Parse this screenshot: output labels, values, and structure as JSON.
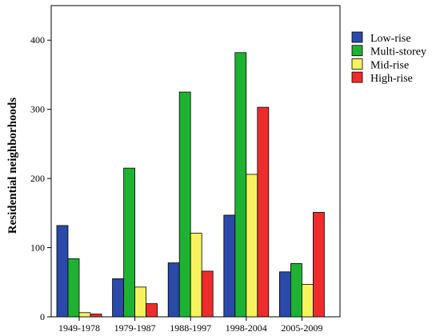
{
  "chart_data": {
    "type": "bar",
    "title": "",
    "xlabel": "",
    "ylabel": "Residential neighborhoods",
    "ylim": [
      0,
      450
    ],
    "yticks": [
      0,
      100,
      200,
      300,
      400
    ],
    "grid": false,
    "legend_position": "right",
    "categories": [
      "1949-1978",
      "1979-1987",
      "1988-1997",
      "1998-2004",
      "2005-2009"
    ],
    "series": [
      {
        "name": "Low-rise",
        "color": "#2a49a8",
        "values": [
          132,
          55,
          78,
          147,
          65
        ]
      },
      {
        "name": "Multi-storey",
        "color": "#1fb232",
        "values": [
          84,
          215,
          325,
          382,
          77
        ]
      },
      {
        "name": "Mid-rise",
        "color": "#f7f35e",
        "values": [
          6,
          43,
          121,
          206,
          47
        ]
      },
      {
        "name": "High-rise",
        "color": "#ee2c2c",
        "values": [
          4,
          19,
          66,
          303,
          151
        ]
      }
    ]
  }
}
